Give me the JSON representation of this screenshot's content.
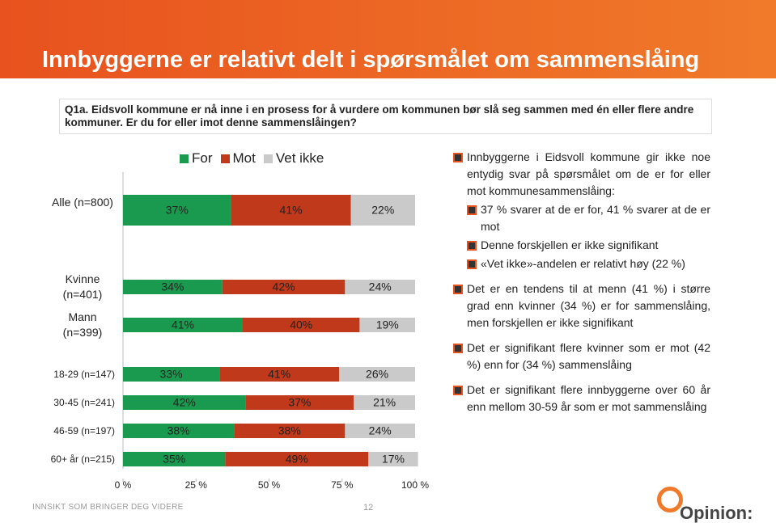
{
  "title": "Innbyggerne er relativt delt i spørsmålet om sammenslåing",
  "question": "Q1a. Eidsvoll kommune er nå inne i en prosess for å vurdere om kommunen bør slå seg sammen med én eller flere andre kommuner. Er du for eller imot denne sammenslåingen?",
  "chart_data": {
    "type": "stacked-bar-horizontal",
    "categories": [
      "Alle (n=800)",
      "Kvinne (n=401)",
      "Mann (n=399)",
      "18-29 (n=147)",
      "30-45 (n=241)",
      "46-59 (n=197)",
      "60+ år (n=215)"
    ],
    "series": [
      {
        "name": "For",
        "color": "#1a9a4f",
        "values": [
          37,
          34,
          41,
          33,
          42,
          38,
          35
        ],
        "value_labels": [
          "37%",
          "34%",
          "41%",
          "33%",
          "42%",
          "38%",
          "35%"
        ]
      },
      {
        "name": "Mot",
        "color": "#c0391b",
        "values": [
          41,
          42,
          40,
          41,
          37,
          38,
          49
        ],
        "value_labels": [
          "41%",
          "42%",
          "40%",
          "41%",
          "37%",
          "38%",
          "49%"
        ]
      },
      {
        "name": "Vet ikke",
        "color": "#cacaca",
        "values": [
          22,
          24,
          19,
          26,
          21,
          24,
          17
        ],
        "value_labels": [
          "22%",
          "24%",
          "19%",
          "26%",
          "21%",
          "24%",
          "17%"
        ]
      }
    ],
    "xlim": [
      0,
      100
    ],
    "xticks": [
      {
        "value": 0,
        "label": "0 %"
      },
      {
        "value": 25,
        "label": "25 %"
      },
      {
        "value": 50,
        "label": "50 %"
      },
      {
        "value": 75,
        "label": "75 %"
      },
      {
        "value": 100,
        "label": "100 %"
      }
    ],
    "legend": "top"
  },
  "bullets": [
    {
      "text": "Innbyggerne i Eidsvoll kommune gir ikke noe entydig svar på spørsmålet om de er for eller mot kommunesammenslåing:",
      "sub": [
        "37 % svarer at de er for, 41 % svarer at de er mot",
        "Denne forskjellen er ikke signifikant",
        "«Vet ikke»-andelen er relativt høy (22 %)"
      ]
    },
    {
      "text": "Det er en tendens til at menn (41 %) i større grad enn kvinner (34 %) er for sammenslåing, men forskjellen er ikke signifikant"
    },
    {
      "text": "Det er signifikant flere kvinner som er mot (42 %) enn for (34 %) sammenslåing"
    },
    {
      "text": "Det er signifikant flere innbyggerne over 60 år enn mellom 30-59 år som er mot sammenslåing"
    }
  ],
  "footer": "INNSIKT SOM BRINGER DEG VIDERE",
  "page_number": "12",
  "logo": "Opinion:"
}
